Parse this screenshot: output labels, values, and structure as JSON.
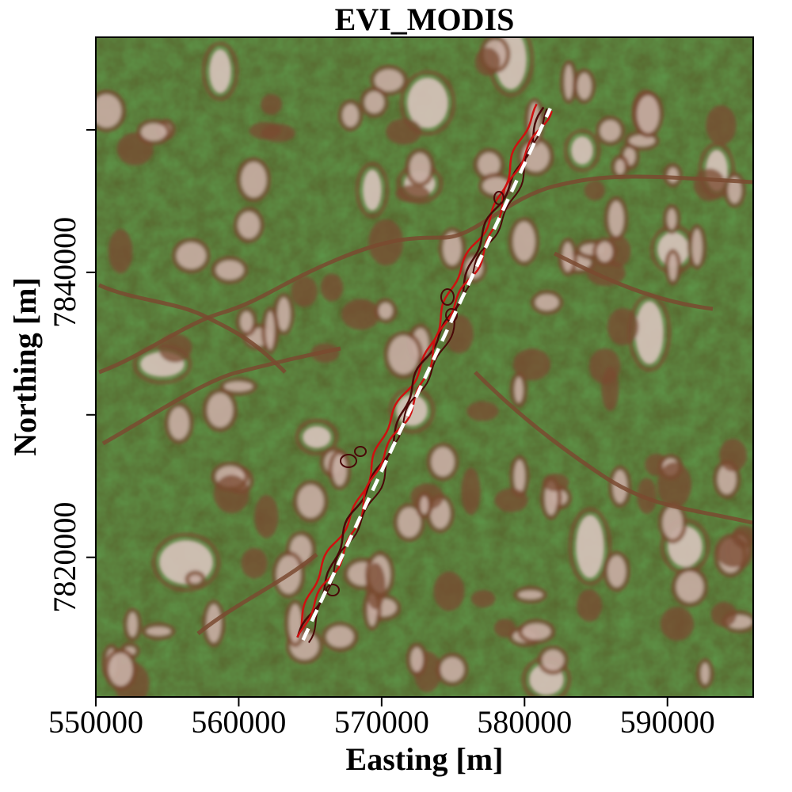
{
  "title": "EVI_MODIS",
  "x_axis": {
    "label": "Easting [m]",
    "range": [
      550000,
      596000
    ],
    "ticks": [
      550000,
      560000,
      570000,
      580000,
      590000
    ],
    "tick_labels": [
      "550000",
      "560000",
      "570000",
      "580000",
      "590000"
    ]
  },
  "y_axis": {
    "label": "Northing [m]",
    "range": [
      7810200,
      7856500
    ],
    "ticks": [
      7820000,
      7830000,
      7840000,
      7850000
    ],
    "tick_labels": [
      "7820000",
      "",
      "7840000",
      ""
    ]
  },
  "colors": {
    "vegetation_green": "#2f8a2a",
    "soil_brown": "#7a4a30",
    "bare_pale": "#d8c4bc",
    "contour_red": "#d01010",
    "contour_dark": "#4a0808",
    "transect_white": "#ffffff"
  },
  "transect": {
    "start": {
      "easting": 564500,
      "northing": 7814200
    },
    "end": {
      "easting": 581800,
      "northing": 7851500
    },
    "style": "white-dashed"
  }
}
